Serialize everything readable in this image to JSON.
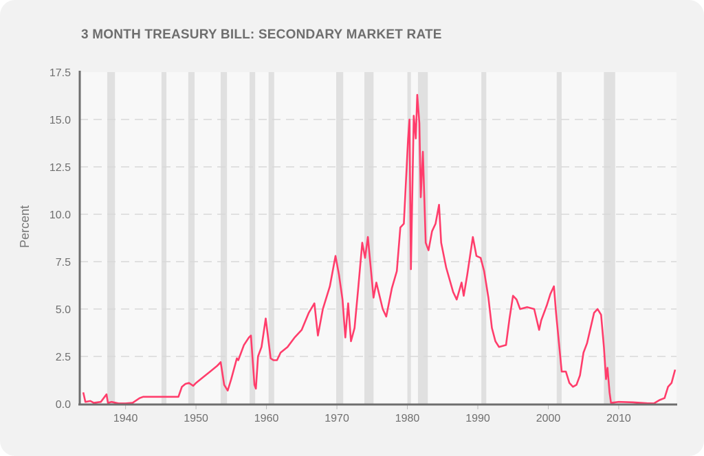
{
  "chart_data": {
    "type": "line",
    "title": "3 MONTH TREASURY BILL: SECONDARY MARKET RATE",
    "xlabel": "",
    "ylabel": "Percent",
    "xlim": [
      1933.5,
      2018.2
    ],
    "ylim": [
      0,
      17.5
    ],
    "xticks": [
      1940,
      1950,
      1960,
      1970,
      1980,
      1990,
      2000,
      2010
    ],
    "yticks": [
      "0.0",
      "2.5",
      "5.0",
      "7.5",
      "10.0",
      "12.5",
      "15.0",
      "17.5"
    ],
    "grid": "horizontal dashed",
    "line_color": "#ff3d6b",
    "recession_color": "#e0e0e0",
    "recessions": [
      [
        1937.4,
        1938.5
      ],
      [
        1945.1,
        1945.8
      ],
      [
        1948.9,
        1949.8
      ],
      [
        1953.5,
        1954.4
      ],
      [
        1957.6,
        1958.4
      ],
      [
        1960.3,
        1961.1
      ],
      [
        1969.9,
        1970.9
      ],
      [
        1973.9,
        1975.2
      ],
      [
        1980.0,
        1980.5
      ],
      [
        1981.5,
        1982.9
      ],
      [
        1990.5,
        1991.2
      ],
      [
        2001.2,
        2001.9
      ],
      [
        2007.9,
        2009.5
      ]
    ],
    "series": [
      {
        "x": [
          1934.0,
          1934.3,
          1935,
          1935.5,
          1936.5,
          1937.3,
          1937.5,
          1938,
          1939,
          1940,
          1941,
          1942,
          1942.5,
          1947.5,
          1948,
          1948.5,
          1949,
          1949.6,
          1950,
          1951,
          1952,
          1953,
          1953.5,
          1954,
          1954.5,
          1955,
          1955.8,
          1956,
          1956.8,
          1957.5,
          1957.8,
          1958.3,
          1958.5,
          1958.8,
          1959.3,
          1959.9,
          1960.3,
          1960.6,
          1961,
          1961.5,
          1962,
          1963,
          1964,
          1965,
          1966,
          1966.8,
          1967.3,
          1968,
          1969,
          1969.8,
          1970.3,
          1970.8,
          1971.2,
          1971.6,
          1972,
          1972.5,
          1973,
          1973.6,
          1974,
          1974.4,
          1974.8,
          1975.2,
          1975.6,
          1976.5,
          1977,
          1977.8,
          1978.5,
          1979,
          1979.5,
          1980.1,
          1980.3,
          1980.5,
          1980.9,
          1981.2,
          1981.4,
          1981.7,
          1981.9,
          1982.2,
          1982.6,
          1983,
          1983.5,
          1984,
          1984.5,
          1984.8,
          1985.5,
          1986.5,
          1987,
          1987.7,
          1988,
          1988.5,
          1989.3,
          1989.8,
          1990.4,
          1990.9,
          1991.5,
          1992,
          1992.5,
          1993,
          1994,
          1994.5,
          1995,
          1995.5,
          1996,
          1997,
          1998,
          1998.7,
          1999,
          1999.8,
          2000.3,
          2000.8,
          2001.1,
          2001.7,
          2001.9,
          2002.5,
          2003,
          2003.5,
          2004,
          2004.5,
          2005,
          2005.5,
          2006,
          2006.5,
          2007,
          2007.5,
          2007.9,
          2008.2,
          2008.4,
          2008.7,
          2008.9,
          2010,
          2012,
          2014,
          2015,
          2015.8,
          2016.5,
          2017,
          2017.5,
          2018
        ],
        "y": [
          0.6,
          0.1,
          0.15,
          0.05,
          0.1,
          0.5,
          0.05,
          0.1,
          0.02,
          0.02,
          0.05,
          0.3,
          0.37,
          0.37,
          0.9,
          1.05,
          1.1,
          0.95,
          1.1,
          1.4,
          1.7,
          2.0,
          2.2,
          1.0,
          0.7,
          1.3,
          2.4,
          2.3,
          3.1,
          3.5,
          3.6,
          1.0,
          0.8,
          2.5,
          3.0,
          4.5,
          3.3,
          2.4,
          2.3,
          2.3,
          2.7,
          3.0,
          3.5,
          3.9,
          4.8,
          5.3,
          3.6,
          5.0,
          6.2,
          7.8,
          6.8,
          5.5,
          3.5,
          5.3,
          3.3,
          4.0,
          6.0,
          8.5,
          7.7,
          8.8,
          7.2,
          5.6,
          6.4,
          5.0,
          4.6,
          6.1,
          7.0,
          9.3,
          9.5,
          14.0,
          15.0,
          7.1,
          15.2,
          14.0,
          16.3,
          14.8,
          10.9,
          13.3,
          8.5,
          8.1,
          9.1,
          9.5,
          10.5,
          8.5,
          7.2,
          5.9,
          5.5,
          6.4,
          5.7,
          6.8,
          8.8,
          7.8,
          7.7,
          7.0,
          5.6,
          4.0,
          3.3,
          3.0,
          3.1,
          4.5,
          5.7,
          5.5,
          5.0,
          5.1,
          5.0,
          3.9,
          4.4,
          5.2,
          5.8,
          6.2,
          4.8,
          2.5,
          1.7,
          1.7,
          1.1,
          0.9,
          1.0,
          1.5,
          2.7,
          3.2,
          4.0,
          4.8,
          5.0,
          4.7,
          3.0,
          1.3,
          1.9,
          0.6,
          0.05,
          0.1,
          0.08,
          0.03,
          0.02,
          0.2,
          0.3,
          0.9,
          1.1,
          1.8
        ]
      }
    ]
  }
}
